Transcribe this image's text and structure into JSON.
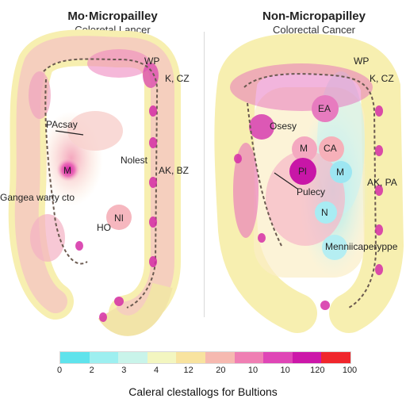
{
  "panels": [
    {
      "title": "Mo·Micropailley",
      "subtitle": "Coloretal Lancer",
      "labels": [
        "WP",
        "K, CZ",
        "PAcsay",
        "Nolest",
        "AK, BZ",
        "M",
        "Gangea warty cto",
        "NI",
        "HO"
      ]
    },
    {
      "title": "Non-Micropapilley",
      "subtitle": "Colorectal Cancer",
      "labels": [
        "WP",
        "K, CZ",
        "EA",
        "Osesy",
        "M",
        "CA",
        "Pl",
        "M",
        "Pulecy",
        "AK, PA",
        "N",
        "Menniicaperyppe"
      ]
    }
  ],
  "legend": {
    "ticks": [
      "0",
      "2",
      "3",
      "4",
      "12",
      "20",
      "10",
      "10",
      "120",
      "100"
    ],
    "colors": [
      "#5fe3ec",
      "#9deff0",
      "#c9f4ea",
      "#f3f6c0",
      "#f8e39f",
      "#f6b9b0",
      "#ef7fb3",
      "#df46b6",
      "#cc17a9",
      "#f0262c"
    ],
    "title": "Caleral clestallogs for Bultions"
  }
}
